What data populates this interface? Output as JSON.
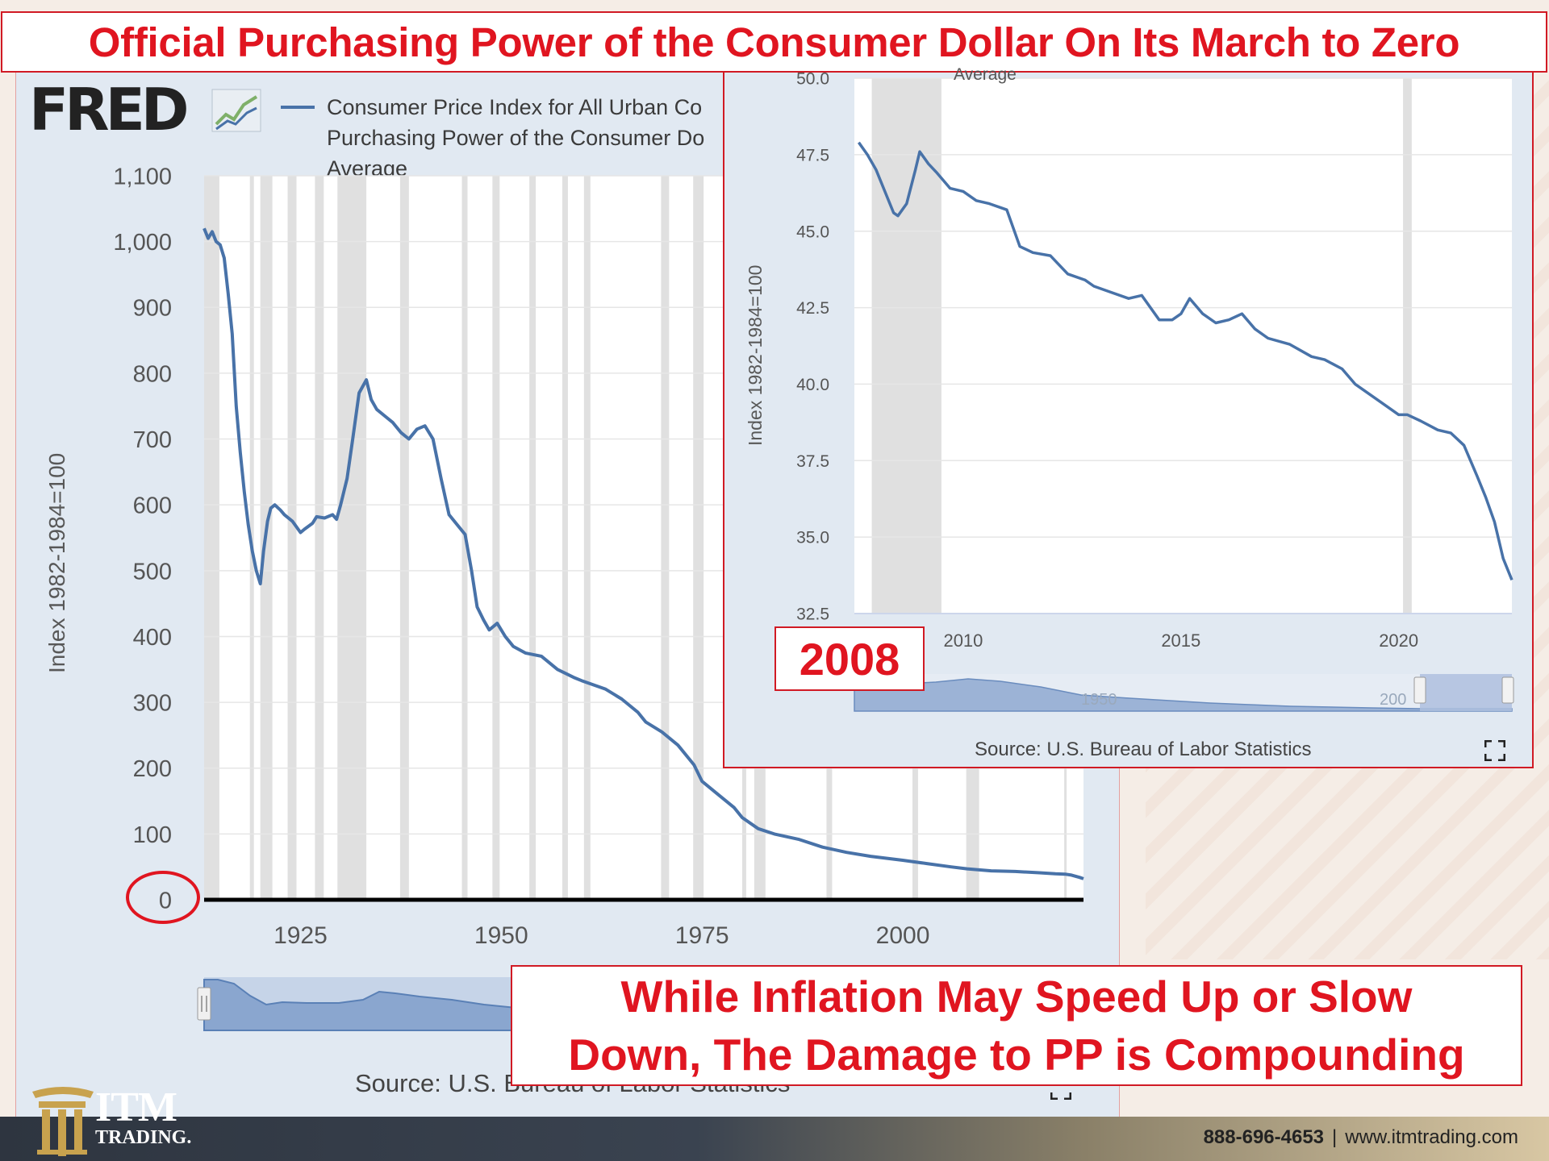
{
  "title": "Official Purchasing Power of the Consumer Dollar On Its March to Zero",
  "fred_logo": "FRED",
  "legend_text": "Consumer Price Index for All Urban Co\nPurchasing Power of the Consumer Do\nAverage",
  "inset_partial_legend": "Average",
  "callout_year": "2008",
  "bottom_callout": "While Inflation May Speed Up or Slow\nDown, The Damage to PP is Compounding",
  "brand": {
    "name": "ITM",
    "sub": "TRADING."
  },
  "contact": {
    "phone": "888-696-4653",
    "separator": "|",
    "website": "www.itmtrading.com"
  },
  "colors": {
    "accent_red": "#e01520",
    "series_blue": "#4872a8",
    "panel_bg": "#e1e9f2",
    "recession_gray": "#e0e0e0"
  },
  "icons": {
    "expand": "expand-icon"
  },
  "chart_data": [
    {
      "type": "line",
      "ylabel": "Index 1982-1984=100",
      "xlim": [
        1913,
        2022.5
      ],
      "ylim": [
        0,
        1100
      ],
      "yticks": [
        "0",
        "100",
        "200",
        "300",
        "400",
        "500",
        "600",
        "700",
        "800",
        "900",
        "1,000",
        "1,100"
      ],
      "ytick_values": [
        0,
        100,
        200,
        300,
        400,
        500,
        600,
        700,
        800,
        900,
        1000,
        1100
      ],
      "xticks": [
        "1925",
        "1950",
        "1975",
        "2000"
      ],
      "xtick_values": [
        1925,
        1950,
        1975,
        2000
      ],
      "recessions": [
        [
          1913.0,
          1914.9
        ],
        [
          1918.7,
          1919.2
        ],
        [
          1920.0,
          1921.5
        ],
        [
          1923.4,
          1924.5
        ],
        [
          1926.8,
          1927.9
        ],
        [
          1929.6,
          1933.2
        ],
        [
          1937.4,
          1938.5
        ],
        [
          1945.1,
          1945.8
        ],
        [
          1948.9,
          1949.8
        ],
        [
          1953.5,
          1954.3
        ],
        [
          1957.6,
          1958.3
        ],
        [
          1960.3,
          1961.1
        ],
        [
          1969.9,
          1970.9
        ],
        [
          1973.9,
          1975.2
        ],
        [
          1980.0,
          1980.5
        ],
        [
          1981.5,
          1982.9
        ],
        [
          1990.5,
          1991.2
        ],
        [
          2001.2,
          2001.9
        ],
        [
          2007.9,
          2009.5
        ],
        [
          2020.1,
          2020.3
        ]
      ],
      "grid": true,
      "legend": "top-left",
      "source": "Source: U.S. Bureau of Labor Statistics",
      "series": [
        {
          "color": "#4872a8",
          "x": [
            1913,
            1913.5,
            1914,
            1914.5,
            1915,
            1915.5,
            1916,
            1916.5,
            1917,
            1917.5,
            1918,
            1918.5,
            1919,
            1919.5,
            1920,
            1920.4,
            1920.9,
            1921.3,
            1921.8,
            1922.5,
            1923,
            1924,
            1925,
            1925.5,
            1926.5,
            1927,
            1928,
            1929,
            1929.5,
            1930,
            1930.8,
            1931.5,
            1932.3,
            1933.2,
            1933.8,
            1934.5,
            1935.5,
            1936.5,
            1937.5,
            1938.5,
            1939.5,
            1940.5,
            1941.5,
            1942.5,
            1943.5,
            1944.5,
            1945.5,
            1946.3,
            1947,
            1947.8,
            1948.5,
            1949.5,
            1950.5,
            1951.5,
            1953,
            1955,
            1957,
            1959,
            1960,
            1963,
            1965,
            1967,
            1968,
            1970,
            1972,
            1974,
            1975,
            1977,
            1979,
            1980,
            1982,
            1984,
            1987,
            1990,
            1993,
            1996,
            2000,
            2003,
            2006,
            2008,
            2011,
            2014,
            2017,
            2019,
            2020.2,
            2021,
            2022,
            2022.5
          ],
          "y": [
            1020,
            1005,
            1015,
            1000,
            995,
            975,
            920,
            860,
            750,
            680,
            620,
            570,
            530,
            500,
            480,
            530,
            575,
            595,
            600,
            592,
            585,
            575,
            558,
            563,
            572,
            582,
            580,
            585,
            578,
            600,
            640,
            700,
            770,
            790,
            760,
            745,
            735,
            725,
            710,
            700,
            715,
            720,
            700,
            640,
            585,
            570,
            555,
            500,
            445,
            425,
            410,
            420,
            400,
            385,
            375,
            370,
            350,
            338,
            333,
            320,
            305,
            285,
            270,
            255,
            235,
            205,
            180,
            160,
            140,
            125,
            108,
            100,
            92,
            80,
            72,
            66,
            60,
            55,
            50,
            47,
            44,
            43,
            41,
            39.5,
            39,
            37.5,
            34,
            32
          ]
        }
      ]
    },
    {
      "type": "line",
      "ylabel": "Index 1982-1984=100",
      "xlim": [
        2007.5,
        2022.6
      ],
      "ylim": [
        32.5,
        50.0
      ],
      "yticks": [
        "32.5",
        "35.0",
        "37.5",
        "40.0",
        "42.5",
        "45.0",
        "47.5",
        "50.0"
      ],
      "ytick_values": [
        32.5,
        35.0,
        37.5,
        40.0,
        42.5,
        45.0,
        47.5,
        50.0
      ],
      "xticks": [
        "2010",
        "2015",
        "2020"
      ],
      "xtick_values": [
        2010,
        2015,
        2020
      ],
      "recessions": [
        [
          2007.9,
          2009.5
        ],
        [
          2020.1,
          2020.3
        ]
      ],
      "grid": true,
      "source": "Source: U.S. Bureau of Labor Statistics",
      "navigator_labels": [
        "1950",
        "200"
      ],
      "series": [
        {
          "color": "#4872a8",
          "x": [
            2007.6,
            2007.8,
            2008.0,
            2008.2,
            2008.4,
            2008.5,
            2008.7,
            2008.9,
            2009.0,
            2009.2,
            2009.4,
            2009.7,
            2010.0,
            2010.3,
            2010.6,
            2011.0,
            2011.3,
            2011.6,
            2012.0,
            2012.4,
            2012.8,
            2013.0,
            2013.4,
            2013.8,
            2014.1,
            2014.5,
            2014.8,
            2015.0,
            2015.2,
            2015.5,
            2015.8,
            2016.1,
            2016.4,
            2016.7,
            2017.0,
            2017.5,
            2018.0,
            2018.3,
            2018.7,
            2019.0,
            2019.3,
            2019.6,
            2020.0,
            2020.2,
            2020.5,
            2020.9,
            2021.2,
            2021.5,
            2021.8,
            2022.0,
            2022.2,
            2022.4,
            2022.6
          ],
          "y": [
            47.9,
            47.5,
            47.0,
            46.3,
            45.6,
            45.5,
            45.9,
            47.0,
            47.6,
            47.2,
            46.9,
            46.4,
            46.3,
            46.0,
            45.9,
            45.7,
            44.5,
            44.3,
            44.2,
            43.6,
            43.4,
            43.2,
            43.0,
            42.8,
            42.9,
            42.1,
            42.1,
            42.3,
            42.8,
            42.3,
            42.0,
            42.1,
            42.3,
            41.8,
            41.5,
            41.3,
            40.9,
            40.8,
            40.5,
            40.0,
            39.7,
            39.4,
            39.0,
            39.0,
            38.8,
            38.5,
            38.4,
            38.0,
            37.0,
            36.3,
            35.5,
            34.3,
            33.6
          ]
        }
      ]
    }
  ]
}
